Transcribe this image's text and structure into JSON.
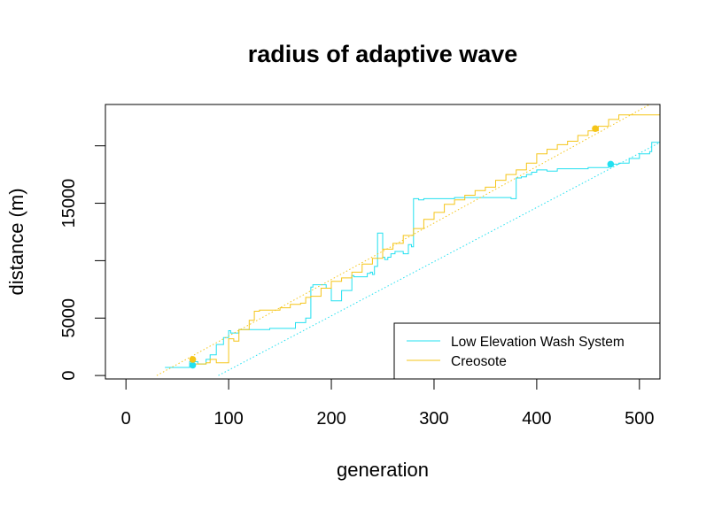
{
  "chart_data": {
    "type": "line",
    "title": "radius of adaptive wave",
    "xlabel": "generation",
    "ylabel": "distance (m)",
    "xlim": [
      -20,
      520
    ],
    "ylim": [
      -300,
      23600
    ],
    "x_ticks": [
      0,
      100,
      200,
      300,
      400,
      500
    ],
    "x_tick_labels": [
      "0",
      "100",
      "200",
      "300",
      "400",
      "500"
    ],
    "y_ticks": [
      0,
      5000,
      10000,
      15000,
      20000
    ],
    "y_tick_labels": [
      "0",
      "5000",
      "",
      "15000",
      ""
    ],
    "legend_position": "bottom-right",
    "grid": false,
    "series": [
      {
        "name": "Low Elevation Wash System",
        "color": "#22E0F0",
        "x": [
          38,
          60,
          62,
          70,
          78,
          82,
          88,
          95,
          100,
          102,
          110,
          118,
          125,
          130,
          140,
          150,
          160,
          165,
          170,
          175,
          180,
          182,
          190,
          195,
          200,
          205,
          210,
          215,
          220,
          222,
          230,
          235,
          238,
          240,
          242,
          245,
          248,
          250,
          252,
          255,
          258,
          262,
          265,
          270,
          275,
          278,
          280,
          285,
          290,
          300,
          320,
          340,
          360,
          375,
          380,
          385,
          390,
          395,
          400,
          410,
          420,
          430,
          440,
          450,
          460,
          470,
          480,
          490,
          500,
          510,
          512,
          520
        ],
        "y": [
          700,
          700,
          1200,
          1000,
          1400,
          1800,
          2700,
          3300,
          3900,
          3700,
          4000,
          4000,
          4000,
          4000,
          4100,
          4100,
          4100,
          4600,
          4600,
          5000,
          7700,
          7900,
          7900,
          7600,
          6500,
          6500,
          7400,
          7400,
          8700,
          8600,
          8600,
          8900,
          9000,
          8800,
          9500,
          12400,
          12400,
          10300,
          10100,
          10300,
          10600,
          10800,
          10800,
          10600,
          11400,
          11200,
          15400,
          15300,
          15400,
          15400,
          15500,
          15500,
          15500,
          15400,
          17200,
          17300,
          17500,
          17700,
          17900,
          17800,
          18000,
          18000,
          18000,
          18100,
          18100,
          18400,
          18500,
          18900,
          19300,
          19500,
          20300,
          20300
        ]
      },
      {
        "name": "Creosote",
        "color": "#F5C518",
        "x": [
          62,
          70,
          78,
          82,
          88,
          95,
          100,
          105,
          110,
          115,
          120,
          125,
          130,
          140,
          150,
          160,
          170,
          175,
          180,
          190,
          200,
          210,
          220,
          230,
          240,
          250,
          260,
          270,
          280,
          290,
          300,
          310,
          320,
          330,
          340,
          350,
          360,
          370,
          380,
          390,
          400,
          410,
          420,
          430,
          440,
          450,
          460,
          470,
          480,
          490,
          500,
          510,
          520
        ],
        "y": [
          1000,
          1000,
          1100,
          1400,
          1100,
          1100,
          3200,
          3000,
          4000,
          4000,
          4800,
          5600,
          5700,
          5700,
          5900,
          6200,
          6300,
          6800,
          6900,
          7600,
          8200,
          8500,
          9000,
          9700,
          10200,
          11000,
          11500,
          12200,
          12800,
          13600,
          14200,
          14900,
          15300,
          15700,
          16100,
          16400,
          17000,
          17500,
          17900,
          18500,
          19300,
          19700,
          20100,
          20400,
          20900,
          21300,
          21700,
          22300,
          22700,
          22700,
          22700,
          22700,
          22700
        ]
      },
      {
        "name": "",
        "style": "dotted",
        "color": "#22E0F0",
        "x": [
          90,
          520
        ],
        "y": [
          0,
          20300
        ]
      },
      {
        "name": "",
        "style": "dotted",
        "color": "#F5C518",
        "x": [
          30,
          510
        ],
        "y": [
          0,
          23600
        ]
      }
    ],
    "points": [
      {
        "color": "#22E0F0",
        "x": 65,
        "y": 900
      },
      {
        "color": "#F5C518",
        "x": 65,
        "y": 1400
      },
      {
        "color": "#22E0F0",
        "x": 472,
        "y": 18400
      },
      {
        "color": "#F5C518",
        "x": 457,
        "y": 21500
      }
    ]
  }
}
